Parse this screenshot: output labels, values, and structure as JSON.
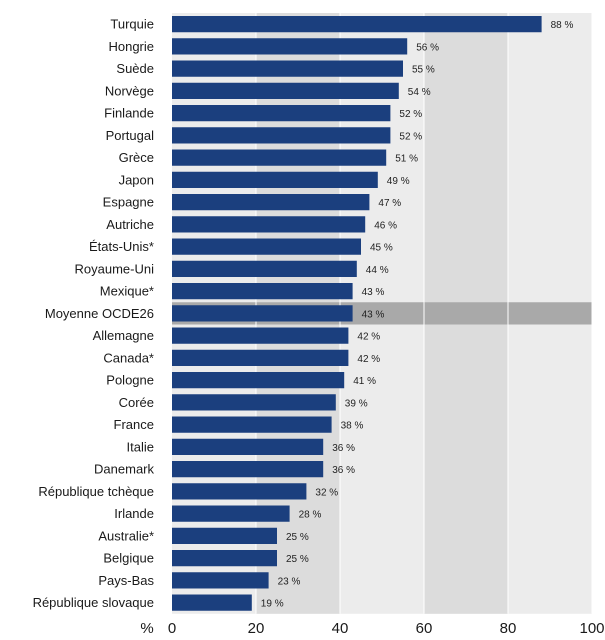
{
  "chart_data": {
    "type": "bar",
    "orientation": "horizontal",
    "categories": [
      "Turquie",
      "Hongrie",
      "Suède",
      "Norvège",
      "Finlande",
      "Portugal",
      "Grèce",
      "Japon",
      "Espagne",
      "Autriche",
      "États-Unis*",
      "Royaume-Uni",
      "Mexique*",
      "Moyenne OCDE26",
      "Allemagne",
      "Canada*",
      "Pologne",
      "Corée",
      "France",
      "Italie",
      "Danemark",
      "République tchèque",
      "Irlande",
      "Australie*",
      "Belgique",
      "Pays-Bas",
      "République slovaque"
    ],
    "values": [
      88,
      56,
      55,
      54,
      52,
      52,
      51,
      49,
      47,
      46,
      45,
      44,
      43,
      43,
      42,
      42,
      41,
      39,
      38,
      36,
      36,
      32,
      28,
      25,
      25,
      23,
      19
    ],
    "value_labels": [
      "88 %",
      "56 %",
      "55 %",
      "54 %",
      "52 %",
      "52 %",
      "51 %",
      "49 %",
      "47 %",
      "46 %",
      "45 %",
      "44 %",
      "43 %",
      "43 %",
      "42 %",
      "42 %",
      "41 %",
      "39 %",
      "38 %",
      "36 %",
      "36 %",
      "32 %",
      "28 %",
      "25 %",
      "25 %",
      "23 %",
      "19 %"
    ],
    "highlight_category": "Moyenne OCDE26",
    "xlim": [
      0,
      100
    ],
    "xticks": [
      0,
      20,
      40,
      60,
      80,
      100
    ],
    "xtick_labels": [
      "0",
      "20",
      "40",
      "60",
      "80",
      "100"
    ],
    "xunit_label": "%",
    "grid": true,
    "colors": {
      "bar": "#1b3f7e",
      "plot_bg": "#ececec",
      "plot_band": "#dcdcdc",
      "highlight_row": "#a9a9a9",
      "grid": "#ffffff"
    }
  }
}
